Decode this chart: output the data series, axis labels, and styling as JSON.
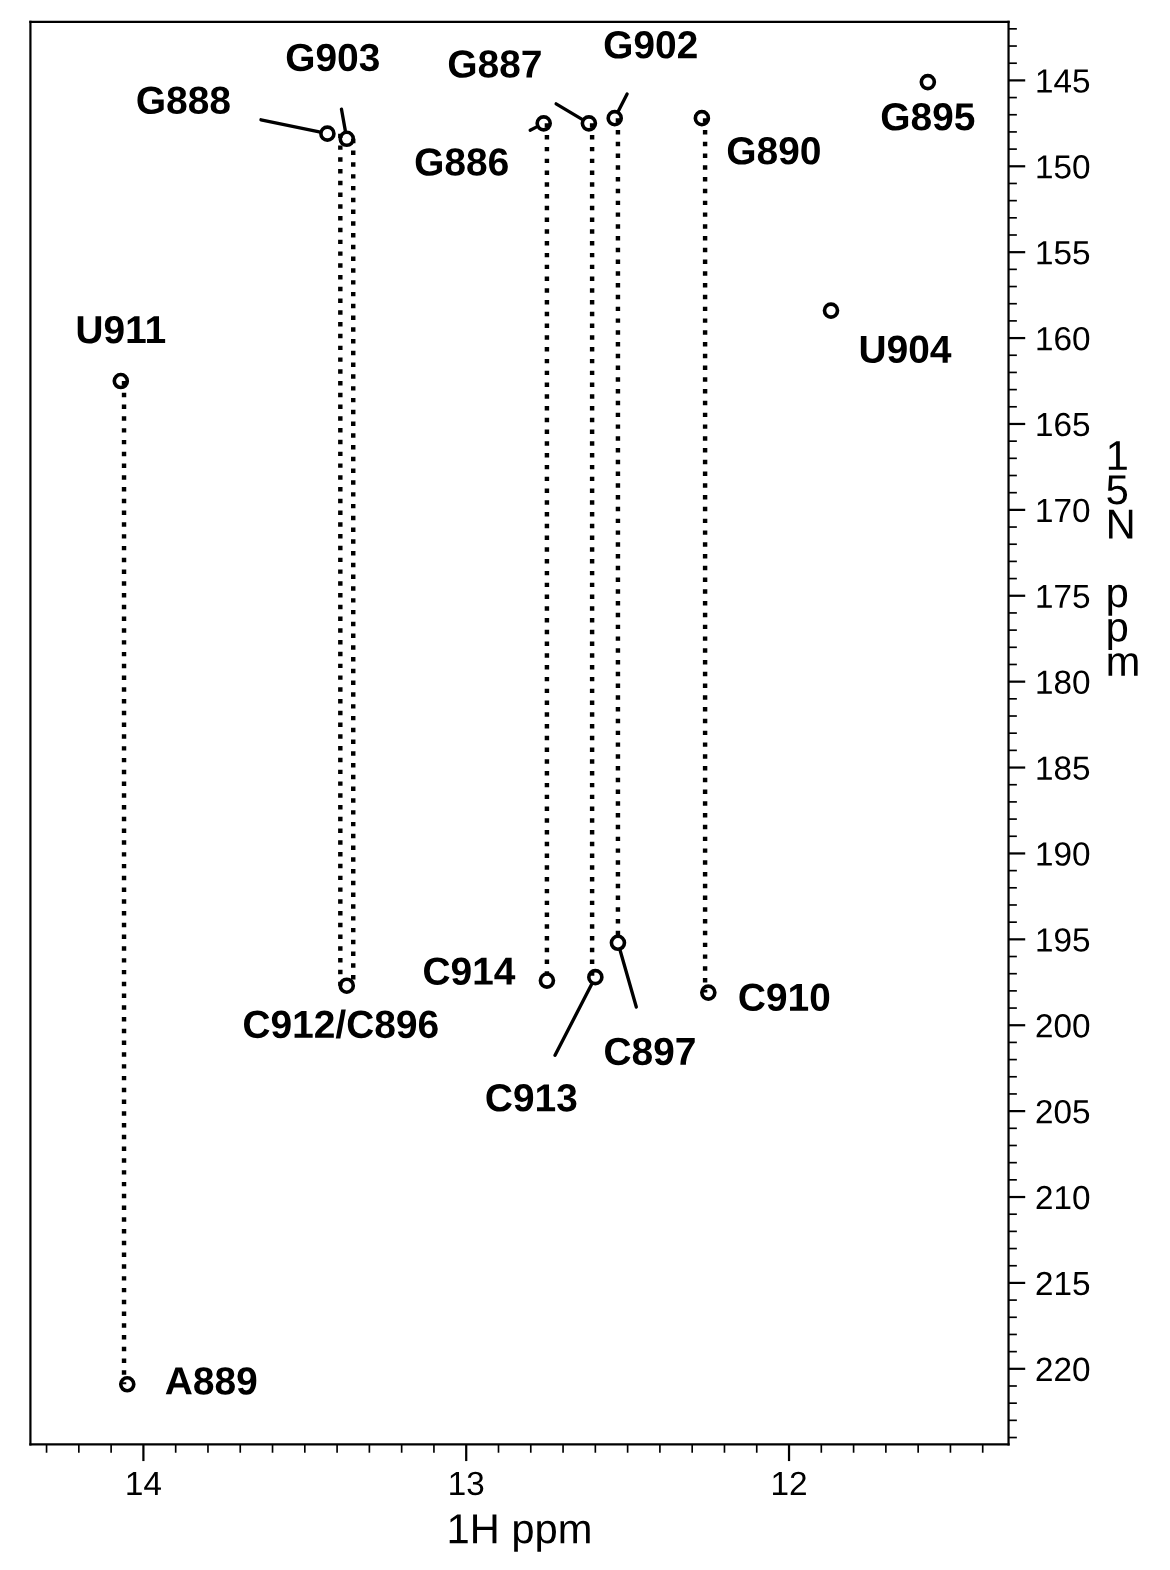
{
  "chart_data": {
    "type": "scatter",
    "xlabel": "1H ppm",
    "ylabel": "15N ppm",
    "xlim": [
      14.35,
      11.32
    ],
    "ylim": [
      224.4,
      141.6
    ],
    "xticks": [
      14,
      13,
      12
    ],
    "yticks": [
      145,
      150,
      155,
      160,
      165,
      170,
      175,
      180,
      185,
      190,
      195,
      200,
      205,
      210,
      215,
      220
    ],
    "grid": false,
    "legend": false,
    "marker": "circle",
    "series": [
      {
        "color": "#000000",
        "x": [
          13.43,
          13.37,
          12.76,
          12.62,
          12.54,
          12.27,
          11.57,
          11.87,
          14.07,
          13.37,
          12.75,
          12.6,
          12.53,
          12.25,
          14.05
        ],
        "values": [
          148.1,
          148.4,
          147.5,
          147.5,
          147.2,
          147.2,
          145.1,
          158.4,
          162.5,
          197.7,
          197.4,
          197.2,
          195.2,
          198.1,
          220.9
        ]
      },
      {
        "type": "line",
        "line_style": "dotted",
        "marker": "none",
        "color": "#000000",
        "x": [
          14.06,
          14.06
        ],
        "values": [
          162.5,
          220.9
        ]
      },
      {
        "type": "line",
        "line_style": "dotted",
        "marker": "none",
        "color": "#000000",
        "x": [
          13.39,
          13.39
        ],
        "values": [
          148.1,
          197.7
        ]
      },
      {
        "type": "line",
        "line_style": "dotted",
        "marker": "none",
        "color": "#000000",
        "x": [
          13.35,
          13.35
        ],
        "values": [
          148.4,
          197.7
        ]
      },
      {
        "type": "line",
        "line_style": "dotted",
        "marker": "none",
        "color": "#000000",
        "x": [
          12.75,
          12.75
        ],
        "values": [
          147.5,
          197.4
        ]
      },
      {
        "type": "line",
        "line_style": "dotted",
        "marker": "none",
        "color": "#000000",
        "x": [
          12.61,
          12.61
        ],
        "values": [
          147.5,
          197.2
        ]
      },
      {
        "type": "line",
        "line_style": "dotted",
        "marker": "none",
        "color": "#000000",
        "x": [
          12.53,
          12.53
        ],
        "values": [
          147.2,
          195.2
        ]
      },
      {
        "type": "line",
        "line_style": "dotted",
        "marker": "none",
        "color": "#000000",
        "x": [
          12.26,
          12.26
        ],
        "values": [
          147.2,
          198.1
        ]
      }
    ],
    "annotations": [
      {
        "text": "G888",
        "x": 13.43,
        "y": 148.1
      },
      {
        "text": "G903",
        "x": 13.37,
        "y": 148.4
      },
      {
        "text": "G886",
        "x": 12.76,
        "y": 147.5
      },
      {
        "text": "G887",
        "x": 12.62,
        "y": 147.5
      },
      {
        "text": "G902",
        "x": 12.54,
        "y": 147.2
      },
      {
        "text": "G890",
        "x": 12.27,
        "y": 147.2
      },
      {
        "text": "G895",
        "x": 11.57,
        "y": 145.1
      },
      {
        "text": "U904",
        "x": 11.87,
        "y": 158.4
      },
      {
        "text": "U911",
        "x": 14.07,
        "y": 162.5
      },
      {
        "text": "C912/C896",
        "x": 13.37,
        "y": 197.7
      },
      {
        "text": "C914",
        "x": 12.75,
        "y": 197.4
      },
      {
        "text": "C913",
        "x": 12.6,
        "y": 197.2
      },
      {
        "text": "C897",
        "x": 12.53,
        "y": 195.2
      },
      {
        "text": "C910",
        "x": 12.25,
        "y": 198.1
      },
      {
        "text": "A889",
        "x": 14.05,
        "y": 220.9
      }
    ]
  }
}
